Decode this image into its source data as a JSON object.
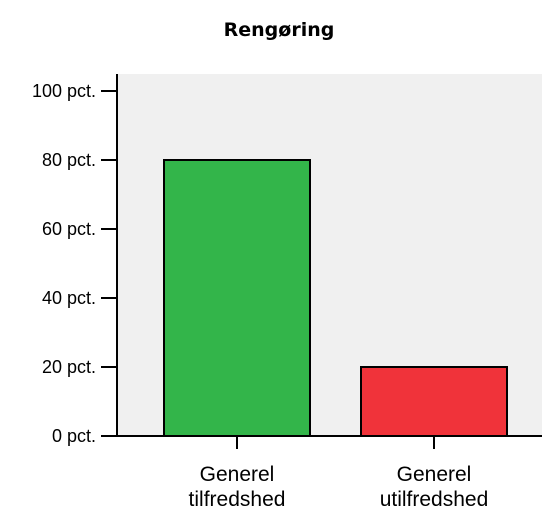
{
  "chart_data": {
    "type": "bar",
    "title": "Rengøring",
    "categories": [
      [
        "Generel",
        "tilfredshed"
      ],
      [
        "Generel",
        "utilfredshed"
      ]
    ],
    "values": [
      80,
      20
    ],
    "bar_colors": [
      "#33b54a",
      "#f0333a"
    ],
    "plot_background": "#f0f0f0",
    "ylim": [
      0,
      100
    ],
    "yticks": [
      0,
      20,
      40,
      60,
      80,
      100
    ],
    "ytick_labels": [
      "0 pct.",
      "20 pct.",
      "40 pct.",
      "60 pct.",
      "80 pct.",
      "100 pct."
    ],
    "xlabel": "",
    "ylabel": "",
    "grid": false,
    "legend": "none"
  }
}
